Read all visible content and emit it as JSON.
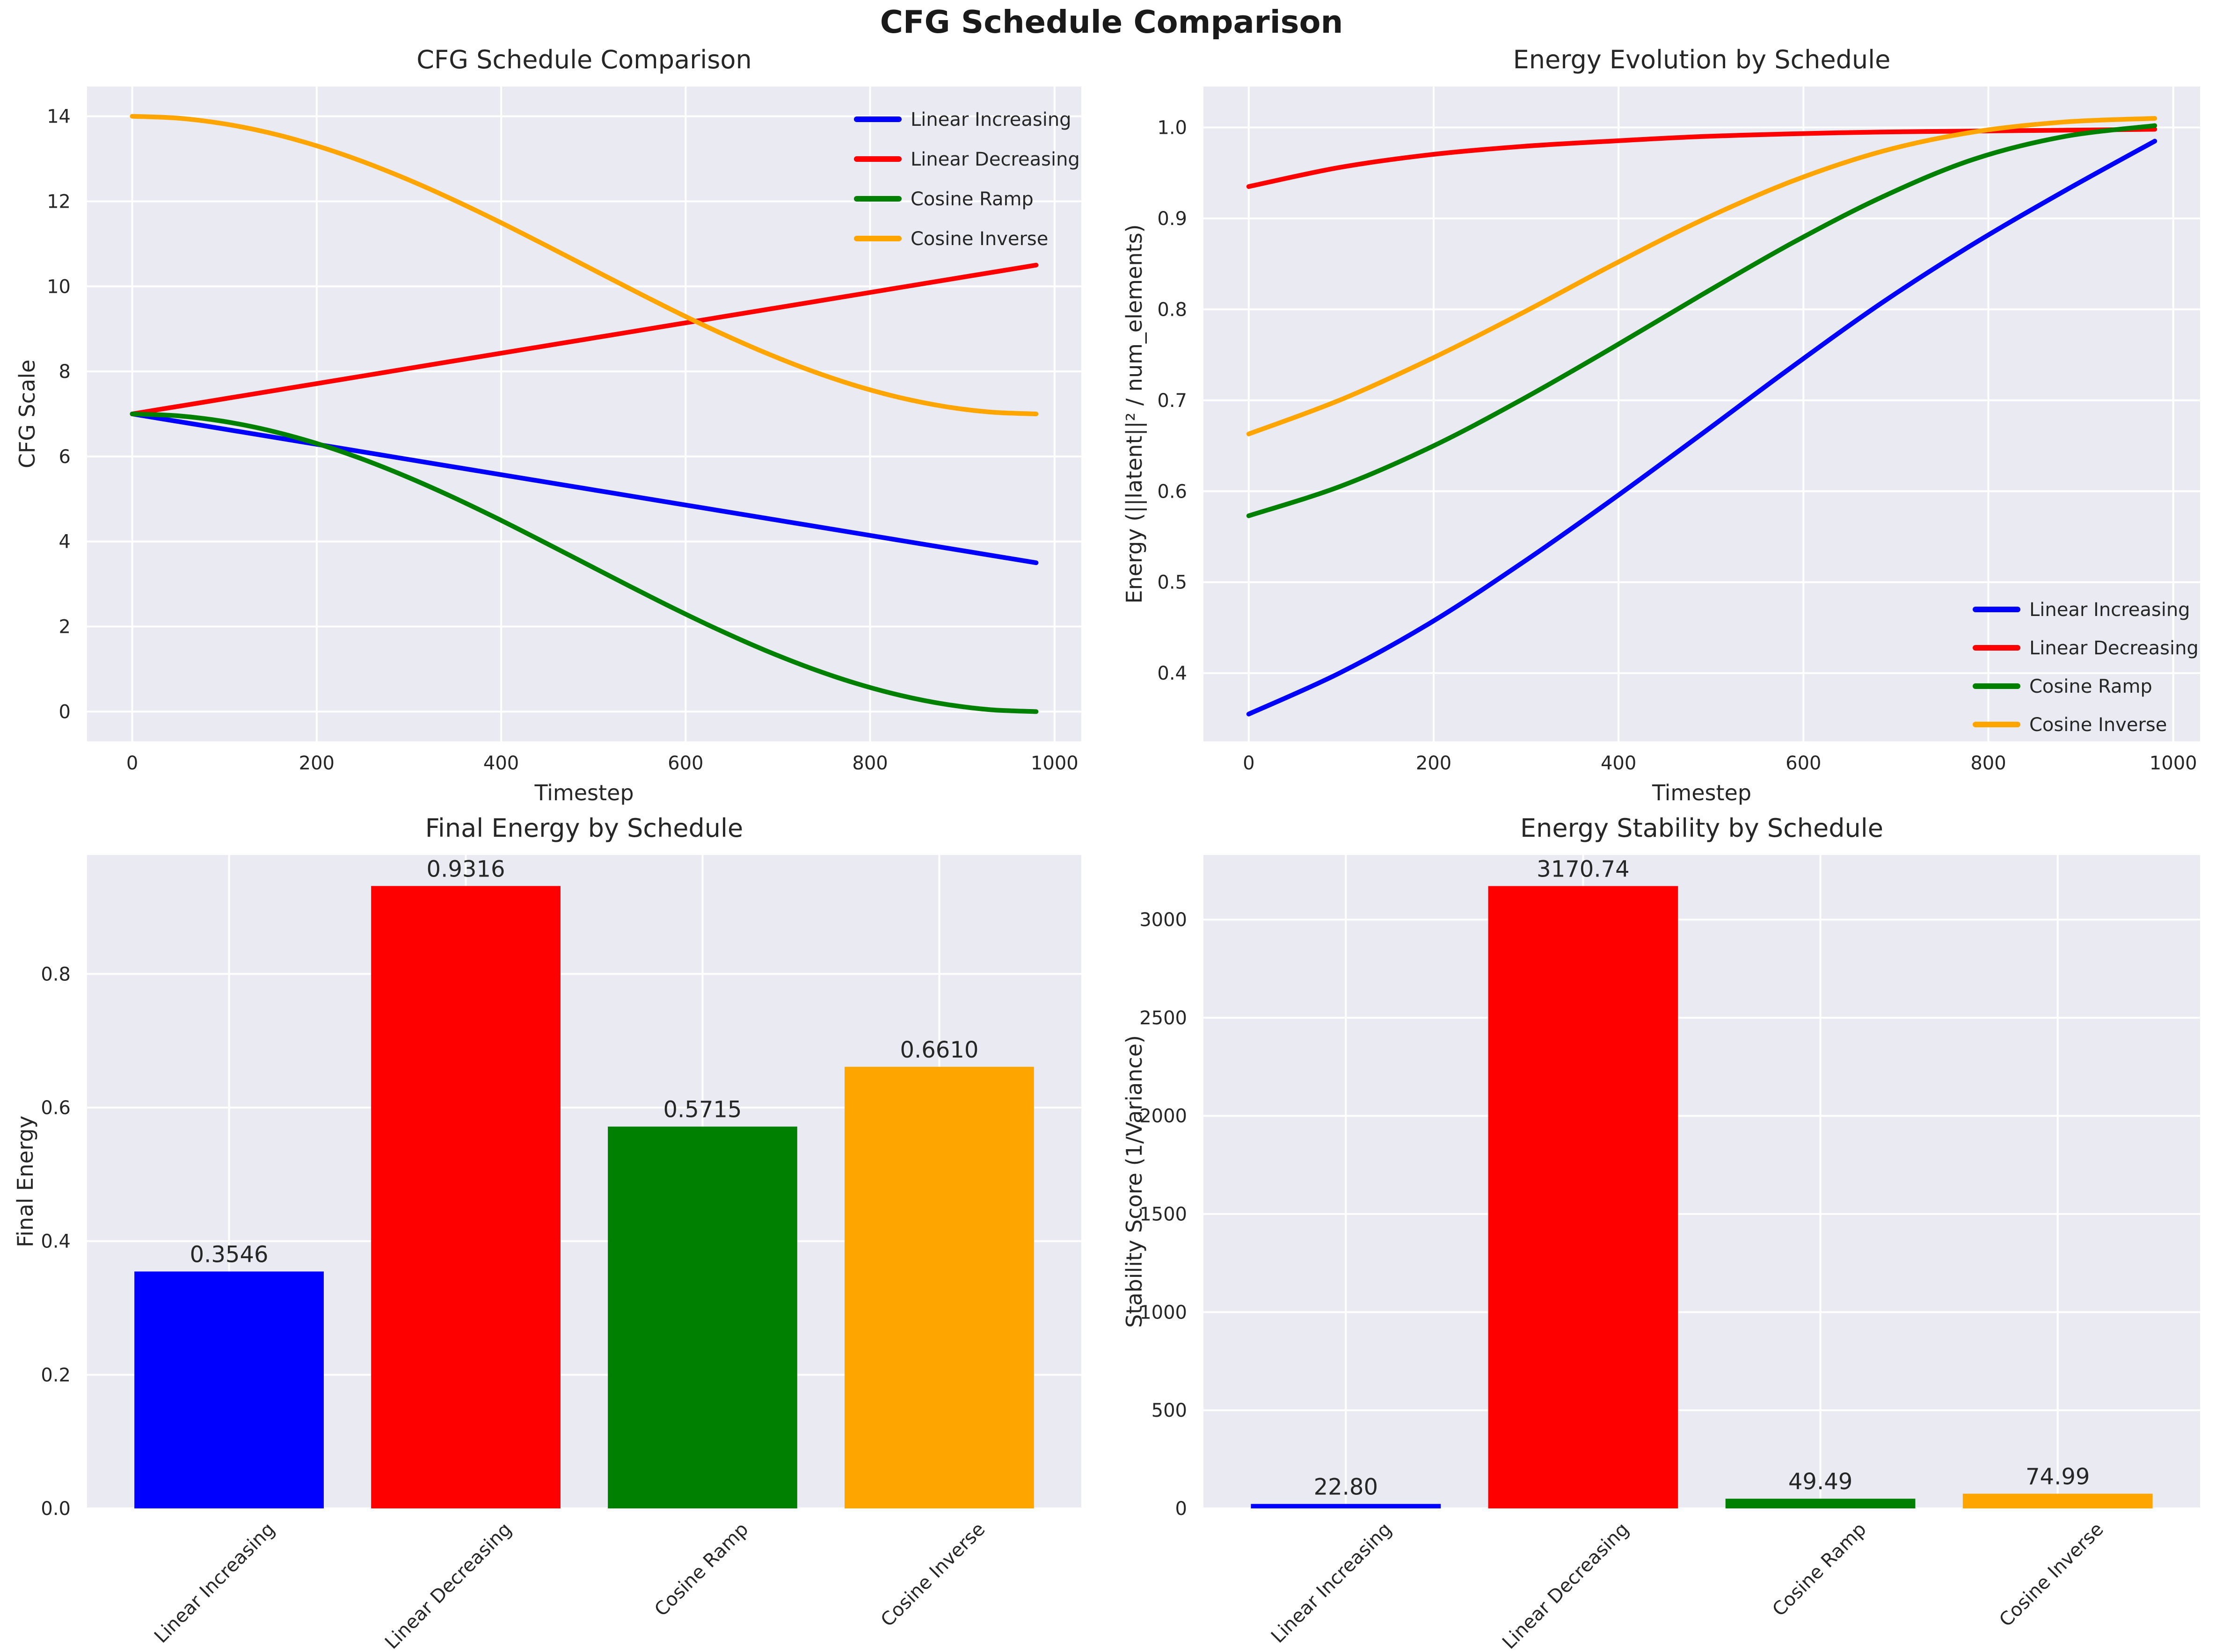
{
  "suptitle": "CFG Schedule Comparison",
  "style": {
    "text_color": "#262626",
    "axes_background": "#eaeaf2",
    "grid_color": "#ffffff",
    "series_colors": {
      "Linear Increasing": "#0000ff",
      "Linear Decreasing": "#ff0000",
      "Cosine Ramp": "#008000",
      "Cosine Inverse": "#ffa500"
    }
  },
  "chart_data": [
    {
      "id": "cfg",
      "type": "line",
      "title": "CFG Schedule Comparison",
      "xlabel": "Timestep",
      "ylabel": "CFG Scale",
      "xlim": [
        -49,
        1029
      ],
      "ylim": [
        -0.7,
        14.7
      ],
      "grid": true,
      "legend_position": "upper-right",
      "xticks": {
        "values": [
          0,
          200,
          400,
          600,
          800,
          1000
        ],
        "labels": [
          "0",
          "200",
          "400",
          "600",
          "800",
          "1000"
        ]
      },
      "yticks": {
        "values": [
          0,
          2,
          4,
          6,
          8,
          10,
          12,
          14
        ],
        "labels": [
          "0",
          "2",
          "4",
          "6",
          "8",
          "10",
          "12",
          "14"
        ]
      },
      "x": [
        0,
        49,
        98,
        147,
        196,
        245,
        294,
        343,
        392,
        441,
        490,
        539,
        588,
        637,
        686,
        735,
        784,
        833,
        882,
        931,
        980
      ],
      "series": [
        {
          "name": "Linear Increasing",
          "color": "#0000ff",
          "values": [
            7.0,
            6.825,
            6.65,
            6.475,
            6.3,
            6.125,
            5.95,
            5.775,
            5.6,
            5.425,
            5.25,
            5.075,
            4.9,
            4.725,
            4.55,
            4.375,
            4.2,
            4.025,
            3.85,
            3.675,
            3.5
          ]
        },
        {
          "name": "Linear Decreasing",
          "color": "#ff0000",
          "values": [
            7.0,
            7.175,
            7.35,
            7.525,
            7.7,
            7.875,
            8.05,
            8.225,
            8.4,
            8.575,
            8.75,
            8.925,
            9.1,
            9.275,
            9.45,
            9.625,
            9.8,
            9.975,
            10.15,
            10.325,
            10.5
          ]
        },
        {
          "name": "Cosine Ramp",
          "color": "#008000",
          "values": [
            7.0,
            6.957,
            6.829,
            6.619,
            6.332,
            5.975,
            5.557,
            5.089,
            4.582,
            4.047,
            3.5,
            2.953,
            2.418,
            1.911,
            1.443,
            1.025,
            0.668,
            0.381,
            0.171,
            0.043,
            0.0
          ]
        },
        {
          "name": "Cosine Inverse",
          "color": "#ffa500",
          "values": [
            14.0,
            13.957,
            13.829,
            13.619,
            13.332,
            12.975,
            12.557,
            12.089,
            11.582,
            11.047,
            10.5,
            9.953,
            9.418,
            8.911,
            8.443,
            8.025,
            7.668,
            7.381,
            7.171,
            7.043,
            7.0
          ]
        }
      ]
    },
    {
      "id": "energy",
      "type": "line",
      "title": "Energy Evolution by Schedule",
      "xlabel": "Timestep",
      "ylabel": "Energy (||latent||² / num_elements)",
      "xlim": [
        -49,
        1029
      ],
      "ylim": [
        0.325,
        1.045
      ],
      "grid": true,
      "legend_position": "lower-right",
      "xticks": {
        "values": [
          0,
          200,
          400,
          600,
          800,
          1000
        ],
        "labels": [
          "0",
          "200",
          "400",
          "600",
          "800",
          "1000"
        ]
      },
      "yticks": {
        "values": [
          0.4,
          0.5,
          0.6,
          0.7,
          0.8,
          0.9,
          1.0
        ],
        "labels": [
          "0.4",
          "0.5",
          "0.6",
          "0.7",
          "0.8",
          "0.9",
          "1.0"
        ]
      },
      "x": [
        0,
        98,
        196,
        294,
        392,
        490,
        588,
        686,
        784,
        882,
        980
      ],
      "series": [
        {
          "name": "Linear Increasing",
          "color": "#0000ff",
          "values": [
            0.355,
            0.4,
            0.455,
            0.52,
            0.59,
            0.663,
            0.737,
            0.808,
            0.872,
            0.93,
            0.985
          ]
        },
        {
          "name": "Linear Decreasing",
          "color": "#ff0000",
          "values": [
            0.935,
            0.956,
            0.97,
            0.979,
            0.985,
            0.99,
            0.993,
            0.995,
            0.996,
            0.997,
            0.998
          ]
        },
        {
          "name": "Cosine Ramp",
          "color": "#008000",
          "values": [
            0.573,
            0.605,
            0.648,
            0.7,
            0.757,
            0.816,
            0.873,
            0.924,
            0.965,
            0.99,
            1.002
          ]
        },
        {
          "name": "Cosine Inverse",
          "color": "#ffa500",
          "values": [
            0.663,
            0.7,
            0.745,
            0.795,
            0.848,
            0.898,
            0.941,
            0.974,
            0.995,
            1.006,
            1.01
          ]
        }
      ]
    },
    {
      "id": "final",
      "type": "bar",
      "title": "Final Energy by Schedule",
      "ylabel": "Final Energy",
      "ylim": [
        0,
        0.978
      ],
      "grid": true,
      "yticks": {
        "values": [
          0.0,
          0.2,
          0.4,
          0.6,
          0.8
        ],
        "labels": [
          "0.0",
          "0.2",
          "0.4",
          "0.6",
          "0.8"
        ]
      },
      "categories": [
        "Linear Increasing",
        "Linear Decreasing",
        "Cosine Ramp",
        "Cosine Inverse"
      ],
      "values": [
        0.3546,
        0.9316,
        0.5715,
        0.661
      ],
      "value_labels": [
        "0.3546",
        "0.9316",
        "0.5715",
        "0.6610"
      ],
      "bar_colors": [
        "#0000ff",
        "#ff0000",
        "#008000",
        "#ffa500"
      ]
    },
    {
      "id": "stability",
      "type": "bar",
      "title": "Energy Stability by Schedule",
      "ylabel": "Stability Score (1/Variance)",
      "ylim": [
        0,
        3329
      ],
      "grid": true,
      "yticks": {
        "values": [
          0,
          500,
          1000,
          1500,
          2000,
          2500,
          3000
        ],
        "labels": [
          "0",
          "500",
          "1000",
          "1500",
          "2000",
          "2500",
          "3000"
        ]
      },
      "categories": [
        "Linear Increasing",
        "Linear Decreasing",
        "Cosine Ramp",
        "Cosine Inverse"
      ],
      "values": [
        22.8,
        3170.74,
        49.49,
        74.99
      ],
      "value_labels": [
        "22.80",
        "3170.74",
        "49.49",
        "74.99"
      ],
      "bar_colors": [
        "#0000ff",
        "#ff0000",
        "#008000",
        "#ffa500"
      ]
    }
  ]
}
